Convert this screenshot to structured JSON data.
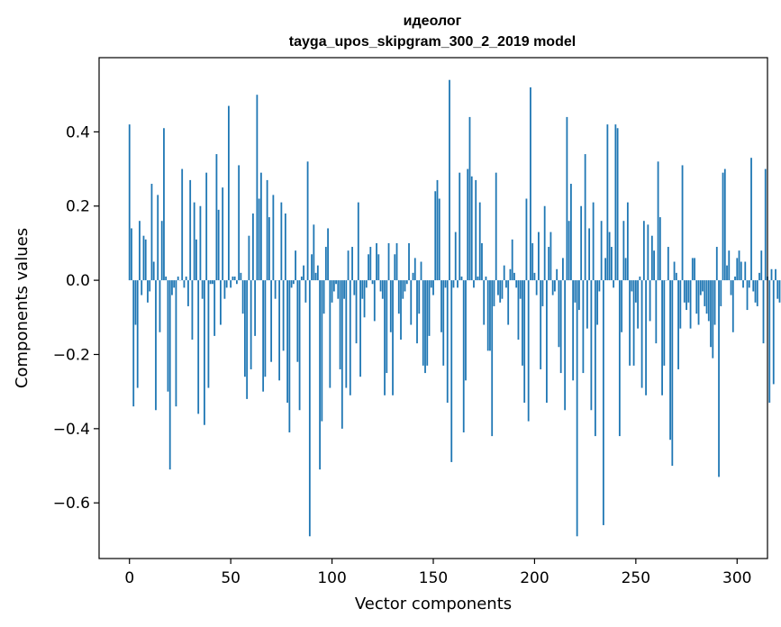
{
  "chart_data": {
    "type": "bar",
    "title": "идеолог",
    "subtitle": "tayga_upos_skipgram_300_2_2019 model",
    "xlabel": "Vector components",
    "ylabel": "Components values",
    "xlim": [
      -15,
      315
    ],
    "ylim": [
      -0.75,
      0.6
    ],
    "xticks": [
      0,
      50,
      100,
      150,
      200,
      250,
      300
    ],
    "xtick_labels": [
      "0",
      "50",
      "100",
      "150",
      "200",
      "250",
      "300"
    ],
    "yticks": [
      -0.6,
      -0.4,
      -0.2,
      0.0,
      0.2,
      0.4
    ],
    "ytick_labels": [
      "−0.6",
      "−0.4",
      "−0.2",
      "0.0",
      "0.2",
      "0.4"
    ],
    "bar_color": "#1f77b4",
    "grid": false,
    "values": [
      0.42,
      0.14,
      -0.34,
      -0.12,
      -0.29,
      0.16,
      -0.04,
      0.12,
      0.11,
      -0.06,
      -0.03,
      0.26,
      0.05,
      -0.35,
      0.23,
      -0.14,
      0.16,
      0.41,
      0.01,
      -0.3,
      -0.51,
      -0.04,
      -0.02,
      -0.34,
      0.01,
      0.0,
      0.3,
      -0.02,
      0.01,
      -0.07,
      0.27,
      -0.16,
      0.21,
      0.11,
      -0.36,
      0.2,
      -0.05,
      -0.39,
      0.29,
      -0.29,
      -0.01,
      -0.01,
      -0.15,
      0.34,
      0.19,
      -0.12,
      0.25,
      -0.05,
      -0.02,
      0.47,
      -0.02,
      0.01,
      0.01,
      -0.01,
      0.31,
      0.02,
      -0.09,
      -0.26,
      -0.32,
      0.12,
      -0.24,
      0.18,
      -0.15,
      0.5,
      0.22,
      0.29,
      -0.3,
      -0.26,
      0.27,
      0.17,
      -0.22,
      0.23,
      -0.05,
      0.0,
      -0.27,
      0.21,
      -0.19,
      0.18,
      -0.33,
      -0.41,
      -0.02,
      -0.01,
      0.08,
      -0.22,
      -0.35,
      0.01,
      0.04,
      -0.06,
      0.32,
      -0.69,
      0.07,
      0.15,
      0.02,
      0.04,
      -0.51,
      -0.38,
      -0.09,
      0.09,
      0.14,
      -0.29,
      -0.06,
      -0.03,
      -0.01,
      -0.05,
      -0.24,
      -0.4,
      -0.05,
      -0.29,
      0.08,
      -0.31,
      0.09,
      -0.04,
      -0.17,
      0.21,
      -0.26,
      -0.05,
      -0.1,
      -0.02,
      0.07,
      0.09,
      -0.01,
      -0.11,
      0.1,
      0.07,
      -0.03,
      -0.05,
      -0.31,
      -0.25,
      0.1,
      -0.14,
      -0.31,
      0.07,
      0.1,
      -0.09,
      -0.16,
      -0.05,
      -0.03,
      -0.01,
      0.1,
      -0.12,
      0.02,
      0.06,
      -0.17,
      -0.09,
      0.05,
      -0.23,
      -0.25,
      -0.23,
      -0.15,
      -0.02,
      -0.04,
      0.24,
      0.27,
      0.22,
      -0.14,
      -0.23,
      -0.02,
      -0.33,
      0.54,
      -0.49,
      -0.02,
      0.13,
      -0.02,
      0.29,
      0.01,
      -0.41,
      -0.27,
      0.3,
      0.44,
      0.28,
      -0.02,
      0.27,
      0.01,
      0.21,
      0.1,
      -0.12,
      0.01,
      -0.19,
      -0.19,
      -0.42,
      -0.07,
      0.29,
      -0.04,
      -0.06,
      -0.05,
      0.04,
      -0.02,
      -0.12,
      0.03,
      0.11,
      0.02,
      -0.02,
      -0.16,
      -0.05,
      -0.23,
      -0.33,
      0.22,
      -0.38,
      0.52,
      0.1,
      0.02,
      -0.04,
      0.13,
      -0.24,
      -0.07,
      0.2,
      -0.33,
      0.09,
      0.13,
      -0.04,
      -0.03,
      0.03,
      -0.18,
      -0.25,
      0.06,
      -0.35,
      0.44,
      0.16,
      0.26,
      -0.27,
      -0.06,
      -0.69,
      -0.08,
      0.2,
      -0.25,
      0.34,
      -0.13,
      0.14,
      -0.35,
      0.21,
      -0.42,
      -0.12,
      -0.03,
      0.16,
      -0.66,
      0.06,
      0.42,
      0.13,
      0.09,
      -0.02,
      0.42,
      0.41,
      -0.42,
      -0.14,
      0.16,
      0.06,
      0.21,
      -0.23,
      -0.03,
      -0.23,
      -0.06,
      -0.13,
      0.01,
      -0.29,
      0.16,
      -0.31,
      0.15,
      -0.11,
      0.12,
      0.08,
      -0.17,
      0.32,
      0.17,
      -0.31,
      -0.23,
      0.0,
      0.09,
      -0.43,
      -0.5,
      0.05,
      0.02,
      -0.24,
      -0.13,
      0.31,
      -0.06,
      -0.08,
      -0.06,
      -0.13,
      0.06,
      0.06,
      -0.09,
      -0.12,
      -0.04,
      -0.03,
      -0.07,
      -0.09,
      -0.11,
      -0.18,
      -0.21,
      -0.12,
      0.09,
      -0.53,
      -0.07,
      0.29,
      0.3,
      0.04,
      0.08,
      -0.04,
      -0.14,
      0.01,
      0.06,
      0.08,
      0.05,
      -0.02,
      0.05,
      -0.08,
      -0.02,
      0.33,
      -0.03,
      -0.06,
      -0.07,
      0.02,
      0.08,
      -0.17,
      0.3,
      0.01,
      -0.33,
      0.03,
      -0.28,
      0.03,
      -0.05,
      -0.06
    ]
  }
}
